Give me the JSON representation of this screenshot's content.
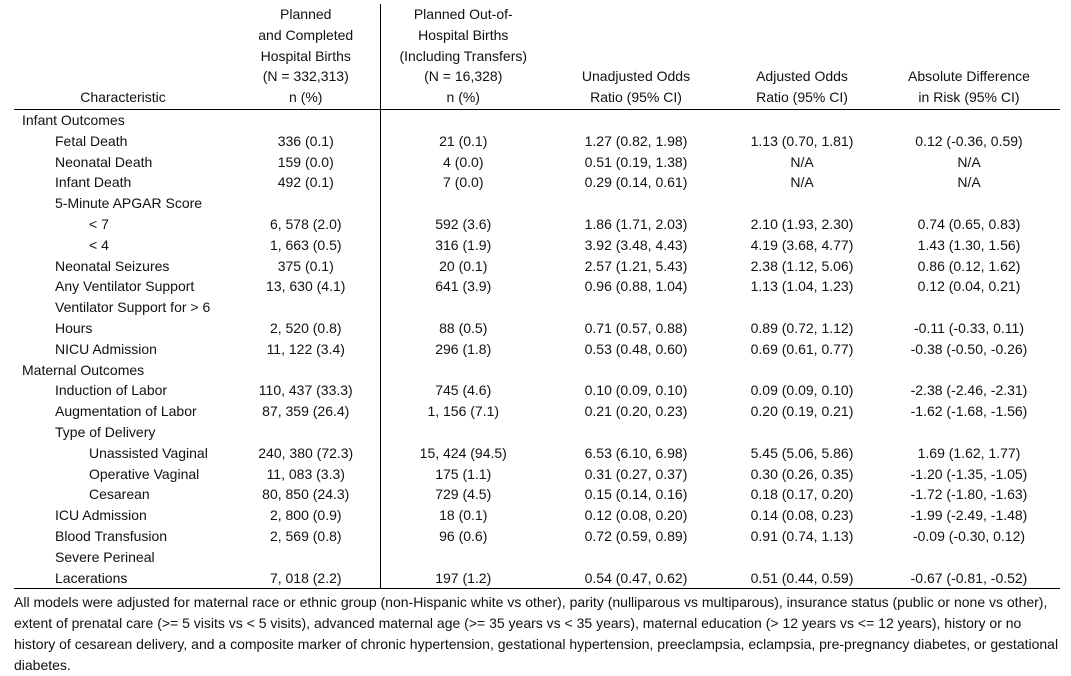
{
  "headers": {
    "characteristic": "Characteristic",
    "hospital": "Planned\nand Completed\nHospital Births\n(N = 332,313)\nn (%)",
    "out_of_hospital": "Planned Out-of-\nHospital Births\n(Including Transfers)\n(N = 16,328)\nn (%)",
    "unadjusted": "Unadjusted Odds\nRatio (95% CI)",
    "adjusted": "Adjusted Odds\nRatio (95% CI)",
    "absolute": "Absolute Difference\nin Risk (95% CI)"
  },
  "rows": [
    {
      "label": "Infant Outcomes",
      "level": 0,
      "section": true,
      "values": [
        "",
        "",
        "",
        "",
        ""
      ]
    },
    {
      "label": "Fetal Death",
      "level": 1,
      "values": [
        "336 (0.1)",
        "21 (0.1)",
        "1.27 (0.82, 1.98)",
        "1.13 (0.70, 1.81)",
        "0.12 (-0.36, 0.59)"
      ]
    },
    {
      "label": "Neonatal Death",
      "level": 1,
      "values": [
        "159 (0.0)",
        "4 (0.0)",
        "0.51 (0.19, 1.38)",
        "N/A",
        "N/A"
      ]
    },
    {
      "label": "Infant Death",
      "level": 1,
      "values": [
        "492 (0.1)",
        "7 (0.0)",
        "0.29 (0.14, 0.61)",
        "N/A",
        "N/A"
      ]
    },
    {
      "label": "5-Minute APGAR Score",
      "level": 1,
      "section": true,
      "values": [
        "",
        "",
        "",
        "",
        ""
      ]
    },
    {
      "label": "< 7",
      "level": 2,
      "values": [
        "6, 578 (2.0)",
        "592 (3.6)",
        "1.86 (1.71, 2.03)",
        "2.10 (1.93, 2.30)",
        "0.74 (0.65, 0.83)"
      ]
    },
    {
      "label": "< 4",
      "level": 2,
      "values": [
        "1, 663 (0.5)",
        "316 (1.9)",
        "3.92 (3.48, 4.43)",
        "4.19 (3.68, 4.77)",
        "1.43 (1.30, 1.56)"
      ]
    },
    {
      "label": "Neonatal Seizures",
      "level": 1,
      "values": [
        "375 (0.1)",
        "20 (0.1)",
        "2.57 (1.21, 5.43)",
        "2.38 (1.12, 5.06)",
        "0.86 (0.12, 1.62)"
      ]
    },
    {
      "label": "Any Ventilator Support",
      "level": 1,
      "values": [
        "13, 630 (4.1)",
        "641 (3.9)",
        "0.96 (0.88, 1.04)",
        "1.13 (1.04, 1.23)",
        "0.12 (0.04, 0.21)"
      ]
    },
    {
      "label": "Ventilator Support for > 6",
      "level": 1,
      "section": true,
      "values": [
        "",
        "",
        "",
        "",
        ""
      ]
    },
    {
      "label": "Hours",
      "level": 1,
      "values": [
        "2, 520 (0.8)",
        "88 (0.5)",
        "0.71 (0.57, 0.88)",
        "0.89 (0.72, 1.12)",
        "-0.11 (-0.33, 0.11)"
      ]
    },
    {
      "label": "NICU Admission",
      "level": 1,
      "values": [
        "11, 122 (3.4)",
        "296 (1.8)",
        "0.53 (0.48, 0.60)",
        "0.69 (0.61, 0.77)",
        "-0.38 (-0.50, -0.26)"
      ]
    },
    {
      "label": "Maternal Outcomes",
      "level": 0,
      "section": true,
      "values": [
        "",
        "",
        "",
        "",
        ""
      ]
    },
    {
      "label": "Induction of Labor",
      "level": 1,
      "values": [
        "110, 437 (33.3)",
        "745 (4.6)",
        "0.10 (0.09, 0.10)",
        "0.09 (0.09, 0.10)",
        "-2.38 (-2.46, -2.31)"
      ]
    },
    {
      "label": "Augmentation of Labor",
      "level": 1,
      "values": [
        "87, 359 (26.4)",
        "1, 156 (7.1)",
        "0.21 (0.20, 0.23)",
        "0.20 (0.19, 0.21)",
        "-1.62 (-1.68, -1.56)"
      ]
    },
    {
      "label": "Type of Delivery",
      "level": 1,
      "section": true,
      "values": [
        "",
        "",
        "",
        "",
        ""
      ]
    },
    {
      "label": "Unassisted Vaginal",
      "level": 2,
      "values": [
        "240, 380 (72.3)",
        "15, 424 (94.5)",
        "6.53 (6.10, 6.98)",
        "5.45 (5.06, 5.86)",
        "1.69 (1.62, 1.77)"
      ]
    },
    {
      "label": "Operative Vaginal",
      "level": 2,
      "values": [
        "11, 083 (3.3)",
        "175 (1.1)",
        "0.31 (0.27, 0.37)",
        "0.30 (0.26, 0.35)",
        "-1.20 (-1.35, -1.05)"
      ]
    },
    {
      "label": "Cesarean",
      "level": 2,
      "values": [
        "80, 850 (24.3)",
        "729 (4.5)",
        "0.15 (0.14, 0.16)",
        "0.18 (0.17, 0.20)",
        "-1.72 (-1.80, -1.63)"
      ]
    },
    {
      "label": "ICU Admission",
      "level": 1,
      "values": [
        "2, 800 (0.9)",
        "18 (0.1)",
        "0.12 (0.08, 0.20)",
        "0.14 (0.08, 0.23)",
        "-1.99 (-2.49, -1.48)"
      ]
    },
    {
      "label": "Blood Transfusion",
      "level": 1,
      "values": [
        "2, 569 (0.8)",
        "96 (0.6)",
        "0.72 (0.59, 0.89)",
        "0.91 (0.74, 1.13)",
        "-0.09 (-0.30, 0.12)"
      ]
    },
    {
      "label": "Severe Perineal",
      "level": 1,
      "section": true,
      "values": [
        "",
        "",
        "",
        "",
        ""
      ]
    },
    {
      "label": "Lacerations",
      "level": 1,
      "values": [
        "7, 018 (2.2)",
        "197 (1.2)",
        "0.54 (0.47, 0.62)",
        "0.51 (0.44, 0.59)",
        "-0.67 (-0.81, -0.52)"
      ]
    }
  ],
  "footnote": "All models were adjusted for maternal race or ethnic group (non-Hispanic white vs other), parity (nulliparous vs multiparous), insurance status (public or none vs other), extent of prenatal care (>= 5 visits vs < 5 visits), advanced maternal age (>= 35 years vs < 35 years), maternal education (> 12 years vs <= 12 years), history or no history of cesarean delivery, and a composite marker of chronic hypertension, gestational hypertension, preeclampsia, eclampsia, pre-pregnancy diabetes, or gestational diabetes."
}
